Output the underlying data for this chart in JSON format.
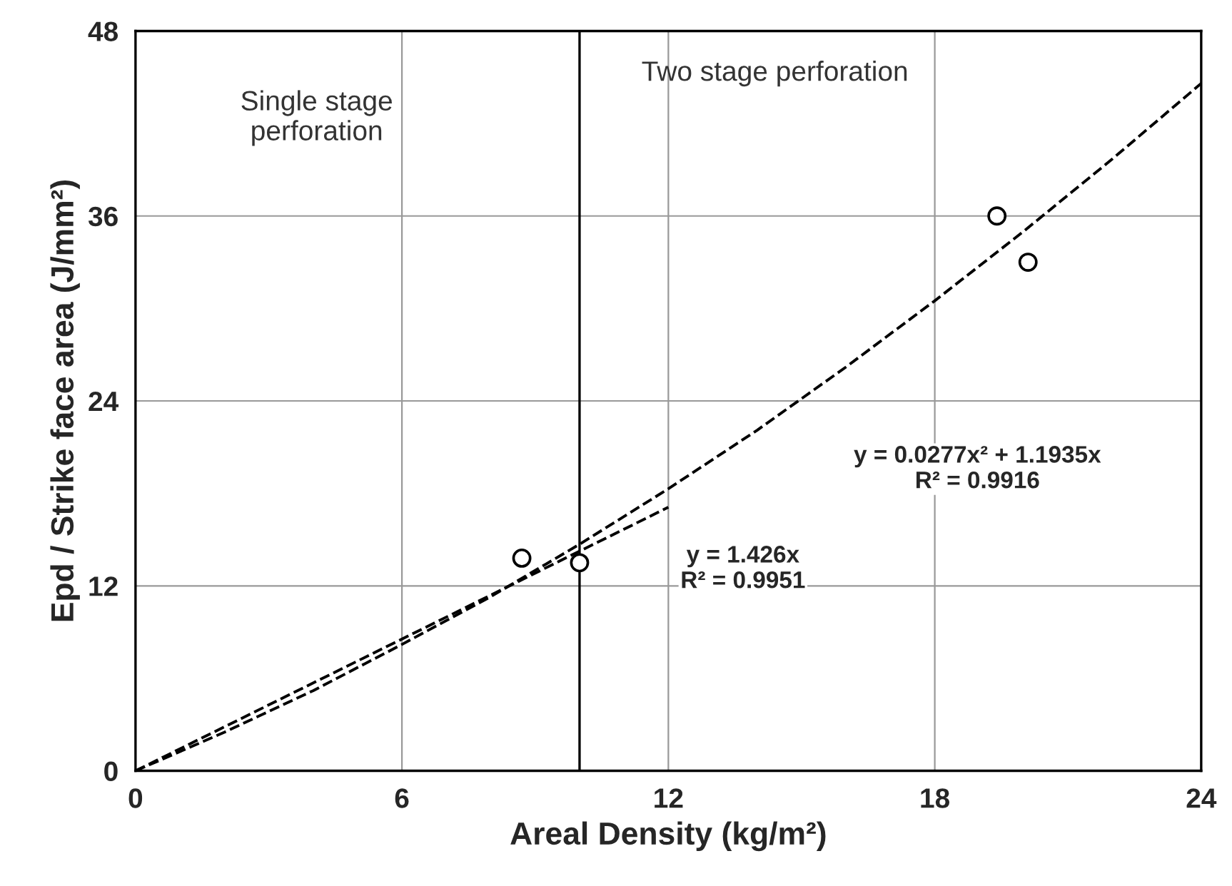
{
  "chart_data": {
    "type": "scatter",
    "xlabel": "Areal Density (kg/m²)",
    "ylabel": "Epd / Strike face area (J/mm²)",
    "xlim": [
      0,
      24
    ],
    "xticks": [
      0,
      6,
      12,
      18,
      24
    ],
    "ylim": [
      0,
      48
    ],
    "yticks": [
      0,
      12,
      24,
      36,
      48
    ],
    "grid": true,
    "legend": false,
    "series": [
      {
        "color": "#000000",
        "marker": "circle",
        "x": [
          8.7,
          10.0,
          19.4,
          20.1
        ],
        "values": [
          13.8,
          13.5,
          36.0,
          33.0
        ]
      },
      {
        "type": "line",
        "color": "#000000",
        "line_style": "dashed",
        "marker": "none",
        "x": [
          0,
          2,
          4,
          6,
          8,
          10,
          12,
          14,
          16,
          18,
          20,
          22,
          24
        ],
        "values": [
          0,
          2.5,
          5.2,
          8.2,
          11.3,
          14.7,
          18.3,
          22.1,
          26.2,
          30.5,
          35.0,
          39.7,
          44.6
        ]
      },
      {
        "type": "line",
        "color": "#000000",
        "line_style": "dashed",
        "marker": "none",
        "x": [
          0,
          12
        ],
        "values": [
          0,
          17.1
        ]
      }
    ],
    "ref_lines": [
      {
        "axis": "x",
        "value": 10,
        "color": "#000000",
        "line_style": "solid"
      }
    ],
    "annotations": [
      "Single stage\nperforation",
      "Two stage perforation",
      "y = 0.0277x² + 1.1935x\nR² = 0.9916",
      "y = 1.426x\nR² = 0.9951"
    ]
  }
}
